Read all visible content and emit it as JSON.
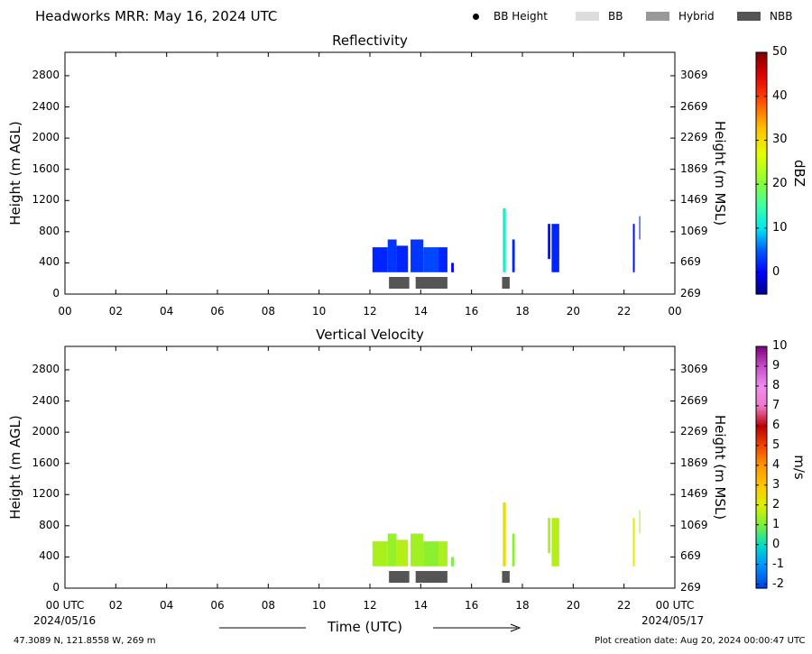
{
  "header": {
    "title": "Headworks MRR:  May 16, 2024 UTC",
    "legend": [
      {
        "label": "BB Height",
        "kind": "dot",
        "color": "#000000"
      },
      {
        "label": "BB",
        "kind": "swatch",
        "color": "#dddddd"
      },
      {
        "label": "Hybrid",
        "kind": "swatch",
        "color": "#999999"
      },
      {
        "label": "NBB",
        "kind": "swatch",
        "color": "#555555"
      }
    ]
  },
  "x_axis": {
    "label": "Time (UTC)",
    "ticks": [
      "00",
      "02",
      "04",
      "06",
      "08",
      "10",
      "12",
      "14",
      "16",
      "18",
      "20",
      "22",
      "00"
    ],
    "bottom_ticks": [
      "00 UTC",
      "02",
      "04",
      "06",
      "08",
      "10",
      "12",
      "14",
      "16",
      "18",
      "20",
      "22",
      "00 UTC"
    ],
    "start_date": "2024/05/16",
    "end_date": "2024/05/17"
  },
  "footer": {
    "location": "47.3089 N, 121.8558 W, 269 m",
    "creation": "Plot creation date: Aug 20, 2024 00:00:47 UTC"
  },
  "chart_data": [
    {
      "type": "heatmap",
      "title": "Reflectivity",
      "xlabel": "",
      "ylabel": "Height (m AGL)",
      "ylabel_right": "Height (m MSL)",
      "xlim": [
        0,
        24
      ],
      "ylim": [
        0,
        3100
      ],
      "yticks_left": [
        "0",
        "400",
        "800",
        "1200",
        "1600",
        "2000",
        "2400",
        "2800"
      ],
      "yticks_right": [
        "269",
        "669",
        "1069",
        "1469",
        "1869",
        "2269",
        "2669",
        "3069"
      ],
      "colorbar": {
        "label": "dBZ",
        "range": [
          -5,
          50
        ],
        "ticks": [
          "0",
          "10",
          "20",
          "30",
          "40",
          "50"
        ]
      },
      "bb_type_bars": [
        {
          "start": 12.75,
          "end": 13.55,
          "type": "NBB"
        },
        {
          "start": 13.8,
          "end": 15.05,
          "type": "NBB"
        },
        {
          "start": 17.2,
          "end": 17.5,
          "type": "NBB"
        }
      ],
      "echo_columns": [
        {
          "start": 12.1,
          "end": 12.7,
          "bottom": 280,
          "top": 600,
          "value": 2
        },
        {
          "start": 12.7,
          "end": 13.05,
          "bottom": 280,
          "top": 700,
          "value": 3
        },
        {
          "start": 13.05,
          "end": 13.5,
          "bottom": 280,
          "top": 620,
          "value": 2
        },
        {
          "start": 13.6,
          "end": 14.1,
          "bottom": 280,
          "top": 700,
          "value": 3
        },
        {
          "start": 14.1,
          "end": 14.7,
          "bottom": 280,
          "top": 600,
          "value": 4
        },
        {
          "start": 14.7,
          "end": 15.05,
          "bottom": 280,
          "top": 600,
          "value": 2
        },
        {
          "start": 15.2,
          "end": 15.3,
          "bottom": 280,
          "top": 400,
          "value": 0
        },
        {
          "start": 17.23,
          "end": 17.35,
          "bottom": 280,
          "top": 1100,
          "value": 12
        },
        {
          "start": 17.6,
          "end": 17.7,
          "bottom": 280,
          "top": 700,
          "value": 2
        },
        {
          "start": 19.0,
          "end": 19.1,
          "bottom": 450,
          "top": 900,
          "value": 1
        },
        {
          "start": 19.15,
          "end": 19.45,
          "bottom": 280,
          "top": 900,
          "value": 2
        },
        {
          "start": 22.35,
          "end": 22.42,
          "bottom": 280,
          "top": 900,
          "value": 1
        },
        {
          "start": 22.6,
          "end": 22.63,
          "bottom": 700,
          "top": 1000,
          "value": 1
        }
      ]
    },
    {
      "type": "heatmap",
      "title": "Vertical Velocity",
      "xlabel": "Time (UTC)",
      "ylabel": "Height (m AGL)",
      "ylabel_right": "Height (m MSL)",
      "xlim": [
        0,
        24
      ],
      "ylim": [
        0,
        3100
      ],
      "yticks_left": [
        "0",
        "400",
        "800",
        "1200",
        "1600",
        "2000",
        "2400",
        "2800"
      ],
      "yticks_right": [
        "269",
        "669",
        "1069",
        "1469",
        "1869",
        "2269",
        "2669",
        "3069"
      ],
      "colorbar": {
        "label": "m/s",
        "range": [
          -2.2,
          10
        ],
        "ticks": [
          "-2",
          "-1",
          "0",
          "1",
          "2",
          "3",
          "4",
          "5",
          "6",
          "7",
          "8",
          "9",
          "10"
        ]
      },
      "bb_type_bars": [
        {
          "start": 12.75,
          "end": 13.55,
          "type": "NBB"
        },
        {
          "start": 13.8,
          "end": 15.05,
          "type": "NBB"
        },
        {
          "start": 17.2,
          "end": 17.5,
          "type": "NBB"
        }
      ],
      "echo_columns": [
        {
          "start": 12.1,
          "end": 12.7,
          "bottom": 280,
          "top": 600,
          "value": 1.5
        },
        {
          "start": 12.7,
          "end": 13.05,
          "bottom": 280,
          "top": 700,
          "value": 1.3
        },
        {
          "start": 13.05,
          "end": 13.5,
          "bottom": 280,
          "top": 620,
          "value": 1.6
        },
        {
          "start": 13.6,
          "end": 14.1,
          "bottom": 280,
          "top": 700,
          "value": 1.4
        },
        {
          "start": 14.1,
          "end": 14.7,
          "bottom": 280,
          "top": 600,
          "value": 1.2
        },
        {
          "start": 14.7,
          "end": 15.05,
          "bottom": 280,
          "top": 600,
          "value": 1.5
        },
        {
          "start": 15.2,
          "end": 15.3,
          "bottom": 280,
          "top": 400,
          "value": 1.0
        },
        {
          "start": 17.23,
          "end": 17.35,
          "bottom": 280,
          "top": 1100,
          "value": 2.5
        },
        {
          "start": 17.6,
          "end": 17.7,
          "bottom": 280,
          "top": 700,
          "value": 1.2
        },
        {
          "start": 19.0,
          "end": 19.1,
          "bottom": 450,
          "top": 900,
          "value": 1.5
        },
        {
          "start": 19.15,
          "end": 19.45,
          "bottom": 280,
          "top": 900,
          "value": 1.6
        },
        {
          "start": 22.35,
          "end": 22.42,
          "bottom": 280,
          "top": 900,
          "value": 2.2
        },
        {
          "start": 22.6,
          "end": 22.63,
          "bottom": 700,
          "top": 1000,
          "value": 1.4
        }
      ]
    }
  ]
}
